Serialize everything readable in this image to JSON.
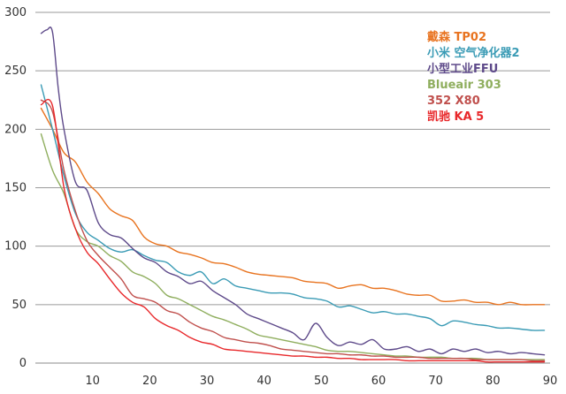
{
  "chart_data": {
    "type": "line",
    "title": "",
    "xlabel": "",
    "ylabel": "",
    "xlim": [
      0,
      90
    ],
    "ylim": [
      0,
      300
    ],
    "x_ticks": [
      10,
      20,
      30,
      40,
      50,
      60,
      70,
      80,
      90
    ],
    "y_ticks": [
      0,
      50,
      100,
      150,
      200,
      250,
      300
    ],
    "grid": "horizontal",
    "legend_position": "top-right",
    "series": [
      {
        "name": "戴森 TP02",
        "color": "#E8731F",
        "x": [
          1,
          3,
          5,
          7,
          9,
          11,
          13,
          15,
          17,
          19,
          21,
          23,
          25,
          27,
          29,
          31,
          33,
          35,
          37,
          39,
          41,
          43,
          45,
          47,
          49,
          51,
          53,
          55,
          57,
          59,
          61,
          63,
          65,
          67,
          69,
          71,
          73,
          75,
          77,
          79,
          81,
          83,
          85,
          87,
          89
        ],
        "values": [
          218,
          200,
          180,
          172,
          155,
          145,
          132,
          126,
          122,
          108,
          102,
          100,
          95,
          93,
          90,
          86,
          85,
          82,
          78,
          76,
          75,
          74,
          73,
          70,
          69,
          68,
          64,
          66,
          67,
          64,
          64,
          62,
          59,
          58,
          58,
          53,
          53,
          54,
          52,
          52,
          50,
          52,
          50,
          50,
          50
        ]
      },
      {
        "name": "小米 空气净化器2",
        "color": "#3A9BB5",
        "x": [
          1,
          3,
          5,
          7,
          9,
          11,
          13,
          15,
          17,
          19,
          21,
          23,
          25,
          27,
          29,
          31,
          33,
          35,
          37,
          39,
          41,
          43,
          45,
          47,
          49,
          51,
          53,
          55,
          57,
          59,
          61,
          63,
          65,
          67,
          69,
          71,
          73,
          75,
          77,
          79,
          81,
          83,
          85,
          87,
          89
        ],
        "values": [
          238,
          200,
          160,
          128,
          112,
          105,
          98,
          95,
          97,
          92,
          88,
          86,
          78,
          75,
          78,
          68,
          72,
          66,
          64,
          62,
          60,
          60,
          59,
          56,
          55,
          53,
          48,
          49,
          46,
          43,
          44,
          42,
          42,
          40,
          38,
          32,
          36,
          35,
          33,
          32,
          30,
          30,
          29,
          28,
          28
        ]
      },
      {
        "name": "小型工业FFU",
        "color": "#5E4A8A",
        "x": [
          1,
          2,
          3,
          4,
          5,
          7,
          9,
          11,
          13,
          15,
          17,
          19,
          21,
          23,
          25,
          27,
          29,
          31,
          33,
          35,
          37,
          39,
          41,
          43,
          45,
          47,
          49,
          51,
          53,
          55,
          57,
          59,
          61,
          63,
          65,
          67,
          69,
          71,
          73,
          75,
          77,
          79,
          81,
          83,
          85,
          87,
          89
        ],
        "values": [
          282,
          285,
          283,
          235,
          200,
          155,
          148,
          120,
          110,
          107,
          98,
          90,
          86,
          78,
          74,
          68,
          70,
          62,
          56,
          50,
          42,
          38,
          34,
          30,
          26,
          20,
          34,
          22,
          15,
          18,
          16,
          20,
          12,
          12,
          14,
          10,
          12,
          8,
          12,
          10,
          12,
          9,
          10,
          8,
          9,
          8,
          7
        ]
      },
      {
        "name": "Blueair 303",
        "color": "#8FAE5E",
        "x": [
          1,
          3,
          5,
          7,
          9,
          11,
          13,
          15,
          17,
          19,
          21,
          23,
          25,
          27,
          29,
          31,
          33,
          35,
          37,
          39,
          41,
          43,
          45,
          47,
          49,
          51,
          53,
          55,
          57,
          59,
          61,
          63,
          65,
          67,
          69,
          71,
          73,
          75,
          77,
          79,
          81,
          83,
          85,
          87,
          89
        ],
        "values": [
          196,
          165,
          145,
          115,
          104,
          100,
          92,
          87,
          78,
          74,
          68,
          58,
          55,
          50,
          45,
          40,
          37,
          33,
          29,
          24,
          22,
          20,
          18,
          16,
          14,
          11,
          10,
          10,
          9,
          8,
          7,
          6,
          6,
          5,
          5,
          5,
          4,
          4,
          4,
          3,
          3,
          3,
          3,
          3,
          3
        ]
      },
      {
        "name": "352 X80",
        "color": "#C0504D",
        "x": [
          1,
          3,
          5,
          7,
          9,
          11,
          13,
          15,
          17,
          19,
          21,
          23,
          25,
          27,
          29,
          31,
          33,
          35,
          37,
          39,
          41,
          43,
          45,
          47,
          49,
          51,
          53,
          55,
          57,
          59,
          61,
          63,
          65,
          67,
          69,
          71,
          73,
          75,
          77,
          79,
          81,
          83,
          85,
          87,
          89
        ],
        "values": [
          225,
          215,
          165,
          130,
          105,
          92,
          82,
          72,
          58,
          55,
          52,
          45,
          42,
          35,
          30,
          27,
          22,
          20,
          18,
          17,
          15,
          12,
          11,
          10,
          9,
          8,
          8,
          7,
          7,
          6,
          6,
          5,
          5,
          5,
          4,
          4,
          4,
          4,
          3,
          3,
          3,
          3,
          3,
          2,
          2
        ]
      },
      {
        "name": "凯驰 KA 5",
        "color": "#E8282B",
        "x": [
          1,
          3,
          5,
          7,
          9,
          11,
          13,
          15,
          17,
          19,
          21,
          23,
          25,
          27,
          29,
          31,
          33,
          35,
          37,
          39,
          41,
          43,
          45,
          47,
          49,
          51,
          53,
          55,
          57,
          59,
          61,
          63,
          65,
          67,
          69,
          71,
          73,
          75,
          77,
          79,
          81,
          83,
          85,
          87,
          89
        ],
        "values": [
          221,
          220,
          150,
          115,
          95,
          85,
          72,
          60,
          52,
          48,
          38,
          32,
          28,
          22,
          18,
          16,
          12,
          11,
          10,
          9,
          8,
          7,
          6,
          6,
          5,
          5,
          4,
          4,
          3,
          3,
          3,
          3,
          2,
          2,
          2,
          2,
          2,
          2,
          2,
          1,
          1,
          1,
          1,
          1,
          1
        ]
      }
    ]
  }
}
